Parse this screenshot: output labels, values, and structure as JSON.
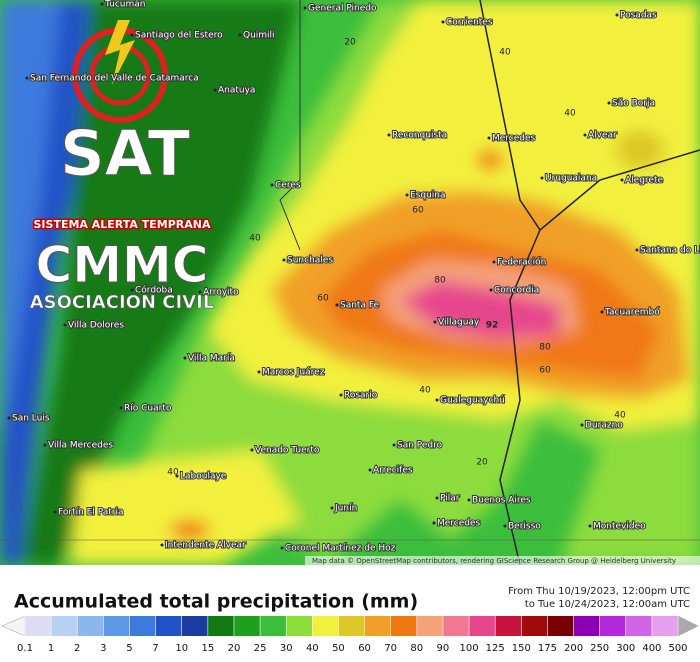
{
  "logo": {
    "name": "SAT",
    "tagline": "SISTEMA ALERTA TEMPRANA",
    "org": "CMMC",
    "subtitle": "ASOCIACION CIVIL"
  },
  "map": {
    "cities": [
      "Tucumán",
      "Santiago del Estero",
      "Quimili",
      "General Pinedo",
      "Corrientes",
      "Posadas",
      "San Fernando del Valle de Catamarca",
      "Anatuya",
      "Reconquista",
      "Mercedes",
      "Alvear",
      "São Borja",
      "Uruguaiana",
      "Alegrete",
      "Esquina",
      "Ceres",
      "Federación",
      "Santana do Livramento",
      "Sunchales",
      "Concordia",
      "Córdoba",
      "Arroyito",
      "Santa Fe",
      "Tacuarembó",
      "Villaguay",
      "Villa Dolores",
      "Villa María",
      "Marcos Juárez",
      "Río Cuarto",
      "Rosario",
      "Gualeguaychú",
      "Durazno",
      "San Luis",
      "Villa Mercedes",
      "Venado Tuerto",
      "San Pedro",
      "Laboulaye",
      "Arrecifes",
      "Pilar",
      "Buenos Aires",
      "Junín",
      "Fortín El Patria",
      "Mercedes",
      "Berisso",
      "Montevideo",
      "Intendente Alvear",
      "Coronel Martínez de Hoz"
    ],
    "contour_labels": [
      20,
      40,
      40,
      60,
      40,
      60,
      80,
      92,
      80,
      60,
      40,
      40,
      20,
      40
    ],
    "attribution": "Map data © OpenStreetMap contributors, rendering GIScience Research Group @ Heidelberg University"
  },
  "footer": {
    "title": "Accumulated total precipitation (mm)",
    "from": "From Thu 10/19/2023, 12:00pm UTC",
    "to": "to Tue 10/24/2023, 12:00am UTC"
  },
  "legend": {
    "levels": [
      0.1,
      1,
      2,
      3,
      5,
      7,
      10,
      15,
      20,
      25,
      30,
      40,
      50,
      60,
      70,
      80,
      90,
      100,
      125,
      150,
      175,
      200,
      250,
      300,
      400,
      500
    ],
    "colors": [
      "#dcdcf2",
      "#b8d0f2",
      "#8cb6ee",
      "#5c98e6",
      "#3c7ade",
      "#2052c8",
      "#1a3ca0",
      "#127a12",
      "#1ea01e",
      "#3cbe3c",
      "#8cdc3c",
      "#f2f03c",
      "#dcc828",
      "#f0a028",
      "#f07814",
      "#f5a37a",
      "#f07890",
      "#e6468c",
      "#c8143c",
      "#a00a0a",
      "#780000",
      "#8c00b4",
      "#b428dc",
      "#d264e6",
      "#e6a0f0"
    ]
  }
}
